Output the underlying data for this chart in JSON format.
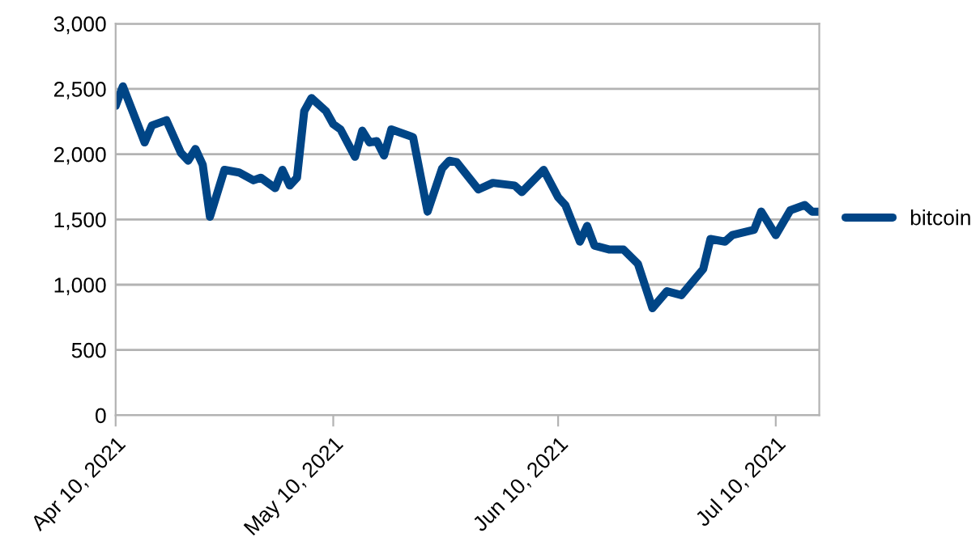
{
  "chart_data": {
    "type": "line",
    "x": [
      "2021-04-10",
      "2021-04-11",
      "2021-04-14",
      "2021-04-15",
      "2021-04-17",
      "2021-04-19",
      "2021-04-20",
      "2021-04-21",
      "2021-04-22",
      "2021-04-23",
      "2021-04-25",
      "2021-04-27",
      "2021-04-29",
      "2021-04-30",
      "2021-05-02",
      "2021-05-03",
      "2021-05-04",
      "2021-05-05",
      "2021-05-06",
      "2021-05-07",
      "2021-05-09",
      "2021-05-10",
      "2021-05-11",
      "2021-05-13",
      "2021-05-14",
      "2021-05-15",
      "2021-05-16",
      "2021-05-17",
      "2021-05-18",
      "2021-05-21",
      "2021-05-23",
      "2021-05-25",
      "2021-05-26",
      "2021-05-27",
      "2021-05-30",
      "2021-06-01",
      "2021-06-04",
      "2021-06-05",
      "2021-06-08",
      "2021-06-10",
      "2021-06-11",
      "2021-06-13",
      "2021-06-14",
      "2021-06-15",
      "2021-06-17",
      "2021-06-19",
      "2021-06-21",
      "2021-06-23",
      "2021-06-25",
      "2021-06-27",
      "2021-06-30",
      "2021-07-01",
      "2021-07-03",
      "2021-07-04",
      "2021-07-07",
      "2021-07-08",
      "2021-07-10",
      "2021-07-12",
      "2021-07-14",
      "2021-07-15",
      "2021-07-16"
    ],
    "series": [
      {
        "name": "bitcoin",
        "color": "#004586",
        "values": [
          2370,
          2520,
          2090,
          2220,
          2260,
          2010,
          1950,
          2040,
          1920,
          1520,
          1880,
          1860,
          1800,
          1820,
          1740,
          1880,
          1760,
          1820,
          2330,
          2430,
          2330,
          2230,
          2190,
          1980,
          2180,
          2090,
          2100,
          1990,
          2190,
          2130,
          1560,
          1890,
          1950,
          1940,
          1730,
          1780,
          1760,
          1710,
          1880,
          1670,
          1610,
          1330,
          1450,
          1300,
          1270,
          1270,
          1160,
          820,
          950,
          920,
          1120,
          1350,
          1330,
          1380,
          1420,
          1560,
          1380,
          1570,
          1610,
          1560,
          1560
        ]
      }
    ],
    "xlim": [
      "2021-04-10",
      "2021-07-16"
    ],
    "xticks": [
      {
        "value": "2021-04-10",
        "label": "Apr 10, 2021"
      },
      {
        "value": "2021-05-10",
        "label": "May 10, 2021"
      },
      {
        "value": "2021-06-10",
        "label": "Jun 10, 2021"
      },
      {
        "value": "2021-07-10",
        "label": "Jul 10, 2021"
      }
    ],
    "ylim": [
      0,
      3000
    ],
    "yticks": [
      {
        "value": 0,
        "label": "0"
      },
      {
        "value": 500,
        "label": "500"
      },
      {
        "value": 1000,
        "label": "1,000"
      },
      {
        "value": 1500,
        "label": "1,500"
      },
      {
        "value": 2000,
        "label": "2,000"
      },
      {
        "value": 2500,
        "label": "2,500"
      },
      {
        "value": 3000,
        "label": "3,000"
      }
    ],
    "grid": "y",
    "legend": "right",
    "marker": "none",
    "line_style": "solid"
  }
}
